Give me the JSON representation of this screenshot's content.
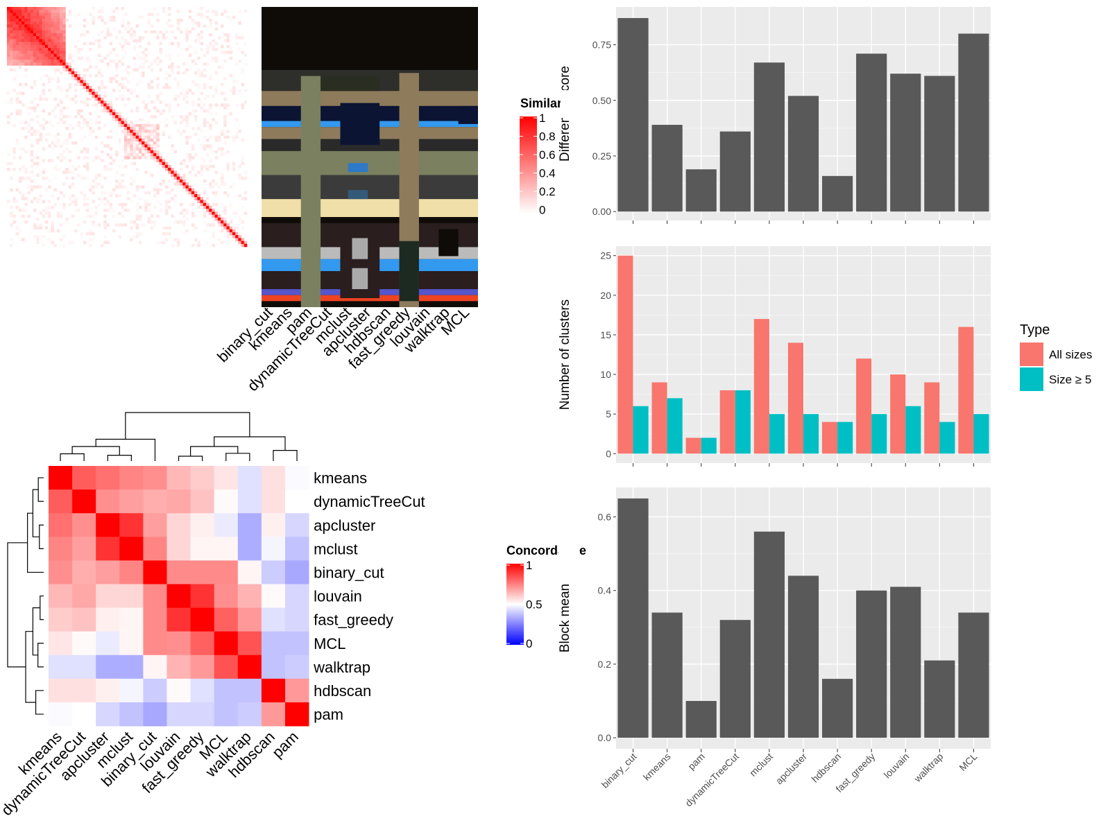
{
  "methods_order_bars": [
    "binary_cut",
    "kmeans",
    "pam",
    "dynamicTreeCut",
    "mclust",
    "apcluster",
    "hdbscan",
    "fast_greedy",
    "louvain",
    "walktrap",
    "MCL"
  ],
  "legends": {
    "similarity_title": "Similarity",
    "similarity_ticks": [
      "1",
      "0.8",
      "0.6",
      "0.4",
      "0.2",
      "0"
    ],
    "concordance_title": "Concordance",
    "concordance_ticks": [
      "1",
      "0.5",
      "0"
    ],
    "type_title": "Type",
    "type_items": [
      {
        "label": "All sizes",
        "color": "#f8766d"
      },
      {
        "label": "Size ≥ 5",
        "color": "#00bfc4"
      }
    ]
  },
  "colors": {
    "bar_gray": "#595959",
    "panel_bg": "#ebebeb",
    "heat_red": "#ff0000",
    "heat_blue": "#0000ff"
  },
  "chart_data": [
    {
      "type": "bar",
      "ylabel": "Difference score",
      "categories": [
        "binary_cut",
        "kmeans",
        "pam",
        "dynamicTreeCut",
        "mclust",
        "apcluster",
        "hdbscan",
        "fast_greedy",
        "louvain",
        "walktrap",
        "MCL"
      ],
      "values": [
        0.87,
        0.39,
        0.19,
        0.36,
        0.67,
        0.52,
        0.16,
        0.71,
        0.62,
        0.61,
        0.8
      ],
      "yticks": [
        "0.00",
        "0.25",
        "0.50",
        "0.75"
      ],
      "ylim": [
        -0.04,
        0.92
      ]
    },
    {
      "type": "bar",
      "ylabel": "Number of clusters",
      "categories": [
        "binary_cut",
        "kmeans",
        "pam",
        "dynamicTreeCut",
        "mclust",
        "apcluster",
        "hdbscan",
        "fast_greedy",
        "louvain",
        "walktrap",
        "MCL"
      ],
      "series": [
        {
          "name": "All sizes",
          "values": [
            25,
            9,
            2,
            8,
            17,
            14,
            4,
            12,
            10,
            9,
            16
          ]
        },
        {
          "name": "Size ≥ 5",
          "values": [
            6,
            7,
            2,
            8,
            5,
            5,
            4,
            5,
            6,
            4,
            5
          ]
        }
      ],
      "yticks": [
        "0",
        "5",
        "10",
        "15",
        "20",
        "25"
      ],
      "ylim": [
        -1.2,
        26.2
      ]
    },
    {
      "type": "bar",
      "ylabel": "Block mean",
      "categories": [
        "binary_cut",
        "kmeans",
        "pam",
        "dynamicTreeCut",
        "mclust",
        "apcluster",
        "hdbscan",
        "fast_greedy",
        "louvain",
        "walktrap",
        "MCL"
      ],
      "values": [
        0.65,
        0.34,
        0.1,
        0.32,
        0.56,
        0.44,
        0.16,
        0.4,
        0.41,
        0.21,
        0.34
      ],
      "yticks": [
        "0.0",
        "0.2",
        "0.4",
        "0.6"
      ],
      "ylim": [
        -0.03,
        0.68
      ]
    },
    {
      "type": "heatmap",
      "title": "Concordance",
      "labels": [
        "kmeans",
        "dynamicTreeCut",
        "apcluster",
        "mclust",
        "binary_cut",
        "louvain",
        "fast_greedy",
        "MCL",
        "walktrap",
        "hdbscan",
        "pam"
      ],
      "matrix": [
        [
          1.0,
          0.82,
          0.78,
          0.74,
          0.72,
          0.64,
          0.6,
          0.55,
          0.44,
          0.56,
          0.49
        ],
        [
          0.82,
          1.0,
          0.72,
          0.69,
          0.66,
          0.67,
          0.62,
          0.51,
          0.44,
          0.56,
          0.5
        ],
        [
          0.78,
          0.72,
          1.0,
          0.9,
          0.69,
          0.58,
          0.53,
          0.46,
          0.34,
          0.53,
          0.42
        ],
        [
          0.74,
          0.69,
          0.9,
          1.0,
          0.74,
          0.58,
          0.52,
          0.52,
          0.34,
          0.48,
          0.38
        ],
        [
          0.72,
          0.66,
          0.69,
          0.74,
          1.0,
          0.73,
          0.73,
          0.73,
          0.52,
          0.4,
          0.33
        ],
        [
          0.64,
          0.67,
          0.58,
          0.58,
          0.73,
          1.0,
          0.9,
          0.72,
          0.65,
          0.51,
          0.42
        ],
        [
          0.6,
          0.62,
          0.53,
          0.52,
          0.73,
          0.9,
          1.0,
          0.81,
          0.7,
          0.44,
          0.42
        ],
        [
          0.55,
          0.51,
          0.46,
          0.52,
          0.73,
          0.72,
          0.81,
          1.0,
          0.84,
          0.38,
          0.38
        ],
        [
          0.44,
          0.44,
          0.34,
          0.34,
          0.52,
          0.65,
          0.7,
          0.84,
          1.0,
          0.38,
          0.4
        ],
        [
          0.56,
          0.56,
          0.53,
          0.48,
          0.4,
          0.51,
          0.44,
          0.38,
          0.38,
          1.0,
          0.7
        ],
        [
          0.49,
          0.5,
          0.42,
          0.38,
          0.33,
          0.42,
          0.42,
          0.38,
          0.4,
          0.7,
          1.0
        ]
      ]
    },
    {
      "type": "heatmap",
      "title": "Similarity",
      "columns": [
        "binary_cut",
        "kmeans",
        "pam",
        "dynamicTreeCut",
        "mclust",
        "apcluster",
        "hdbscan",
        "fast_greedy",
        "louvain",
        "walktrap",
        "MCL"
      ]
    }
  ]
}
